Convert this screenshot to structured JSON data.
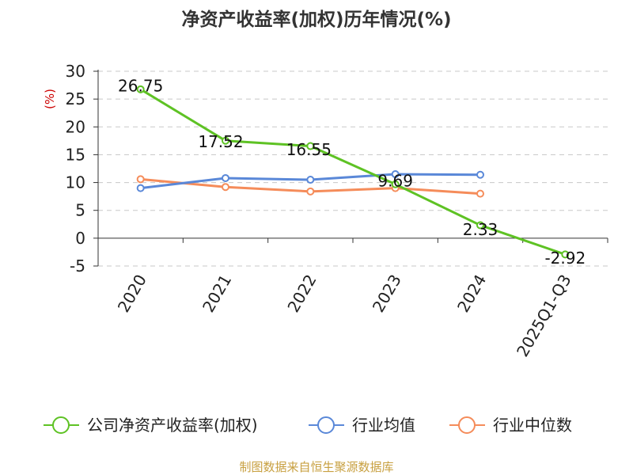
{
  "chart_data": {
    "type": "line",
    "title": "净资产收益率(加权)历年情况(%)",
    "ylabel": "(%)",
    "categories": [
      "2020",
      "2021",
      "2022",
      "2023",
      "2024",
      "2025Q1-Q3"
    ],
    "ylim": [
      -5,
      30
    ],
    "yticks": [
      -5,
      0,
      5,
      10,
      15,
      20,
      25,
      30
    ],
    "grid": true,
    "legend_position": "bottom",
    "series": [
      {
        "name": "公司净资产收益率(加权)",
        "color": "#5ec224",
        "values": [
          26.75,
          17.52,
          16.55,
          9.69,
          2.33,
          -2.92
        ],
        "labels": [
          "26.75",
          "17.52",
          "16.55",
          "9.69",
          "2.33",
          "-2.92"
        ]
      },
      {
        "name": "行业均值",
        "color": "#5a88d8",
        "values": [
          9.0,
          10.8,
          10.5,
          11.5,
          11.4,
          null
        ]
      },
      {
        "name": "行业中位数",
        "color": "#f58c5a",
        "values": [
          10.6,
          9.2,
          8.4,
          9.0,
          8.0,
          null
        ]
      }
    ]
  },
  "source": "制图数据来自恒生聚源数据库"
}
